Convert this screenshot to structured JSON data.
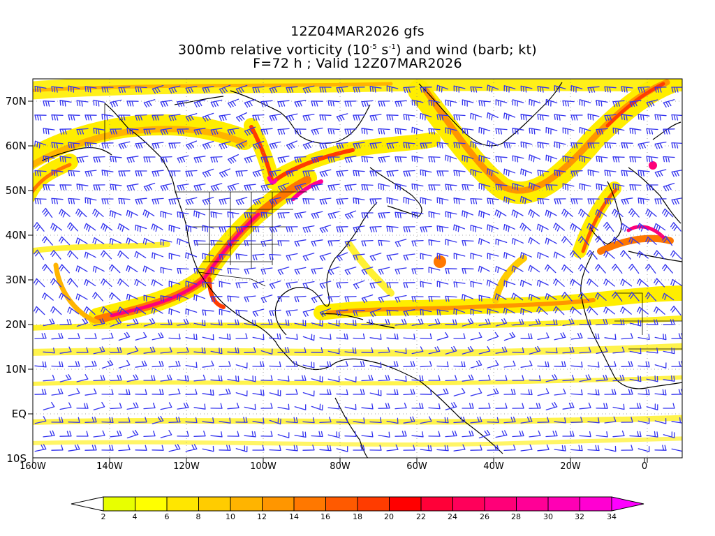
{
  "title": {
    "line1": "12Z04MAR2026 gfs",
    "line2_prefix": "300mb relative vorticity (10",
    "line2_exp1": "-5",
    "line2_mid": " s",
    "line2_exp2": "-1",
    "line2_suffix": ") and wind (barb; kt)",
    "line3": "F=72 h ; Valid 12Z07MAR2026"
  },
  "axes": {
    "lat_labels": [
      "70N",
      "60N",
      "50N",
      "40N",
      "30N",
      "20N",
      "10N",
      "EQ",
      "10S"
    ],
    "lon_labels": [
      "160W",
      "140W",
      "120W",
      "100W",
      "80W",
      "60W",
      "40W",
      "20W",
      "0"
    ]
  },
  "colorbar": {
    "labels": [
      "2",
      "4",
      "6",
      "8",
      "10",
      "12",
      "14",
      "16",
      "18",
      "20",
      "22",
      "24",
      "26",
      "28",
      "30",
      "32",
      "34"
    ],
    "colors": [
      "#ffffff",
      "#e8ff00",
      "#ffff00",
      "#ffe600",
      "#ffcc00",
      "#ffb400",
      "#ff9600",
      "#ff7800",
      "#ff5a00",
      "#ff3c00",
      "#ff0000",
      "#ff0038",
      "#ff005a",
      "#ff0078",
      "#ff0096",
      "#ff00b4",
      "#ff00d2",
      "#ff00ff"
    ]
  },
  "colors": {
    "barb": "#3333ee",
    "coast": "#000000",
    "grid": "#888888"
  }
}
